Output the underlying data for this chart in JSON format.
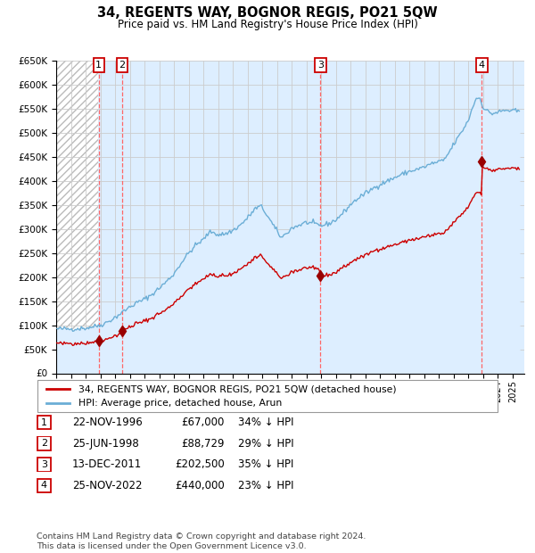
{
  "title": "34, REGENTS WAY, BOGNOR REGIS, PO21 5QW",
  "subtitle": "Price paid vs. HM Land Registry's House Price Index (HPI)",
  "sale_prices": [
    67000,
    88729,
    202500,
    440000
  ],
  "sale_labels": [
    "1",
    "2",
    "3",
    "4"
  ],
  "sale_pct": [
    "34% ↓ HPI",
    "29% ↓ HPI",
    "35% ↓ HPI",
    "23% ↓ HPI"
  ],
  "sale_dates_str": [
    "22-NOV-1996",
    "25-JUN-1998",
    "13-DEC-2011",
    "25-NOV-2022"
  ],
  "sale_prices_str": [
    "£67,000",
    "£88,729",
    "£202,500",
    "£440,000"
  ],
  "hpi_color": "#6baed6",
  "hpi_fill_color": "#ddeeff",
  "price_color": "#cc0000",
  "sale_marker_color": "#990000",
  "vline_color": "#ff6666",
  "label_box_color": "#cc0000",
  "bg_hatch_color": "#bbbbbb",
  "grid_color": "#cccccc",
  "legend_label_property": "34, REGENTS WAY, BOGNOR REGIS, PO21 5QW (detached house)",
  "legend_label_hpi": "HPI: Average price, detached house, Arun",
  "footer": "Contains HM Land Registry data © Crown copyright and database right 2024.\nThis data is licensed under the Open Government Licence v3.0.",
  "ylim": [
    0,
    650000
  ],
  "xlim_start": 1994.0,
  "xlim_end": 2025.8
}
